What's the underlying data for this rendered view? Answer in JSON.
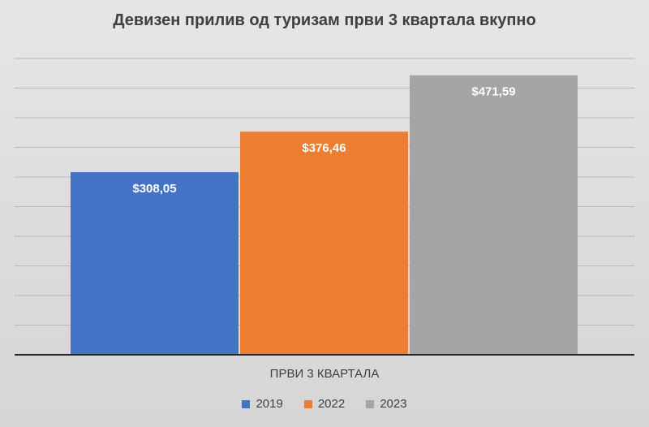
{
  "chart_data": {
    "type": "bar",
    "title": "Девизен прилив од туризам први 3 квартала вкупно",
    "categories": [
      "ПРВИ 3 КВАРТАЛА"
    ],
    "series": [
      {
        "name": "2019",
        "values": [
          308.05
        ],
        "label": "$308,05",
        "color": "#4472c4"
      },
      {
        "name": "2022",
        "values": [
          376.46
        ],
        "label": "$376,46",
        "color": "#ed7d31"
      },
      {
        "name": "2023",
        "values": [
          471.59
        ],
        "label": "$471,59",
        "color": "#a5a5a5"
      }
    ],
    "ylim": [
      0,
      500
    ],
    "y_gridline_step": 50,
    "grid": true,
    "legend_position": "bottom",
    "data_label_position": "inside-top"
  }
}
